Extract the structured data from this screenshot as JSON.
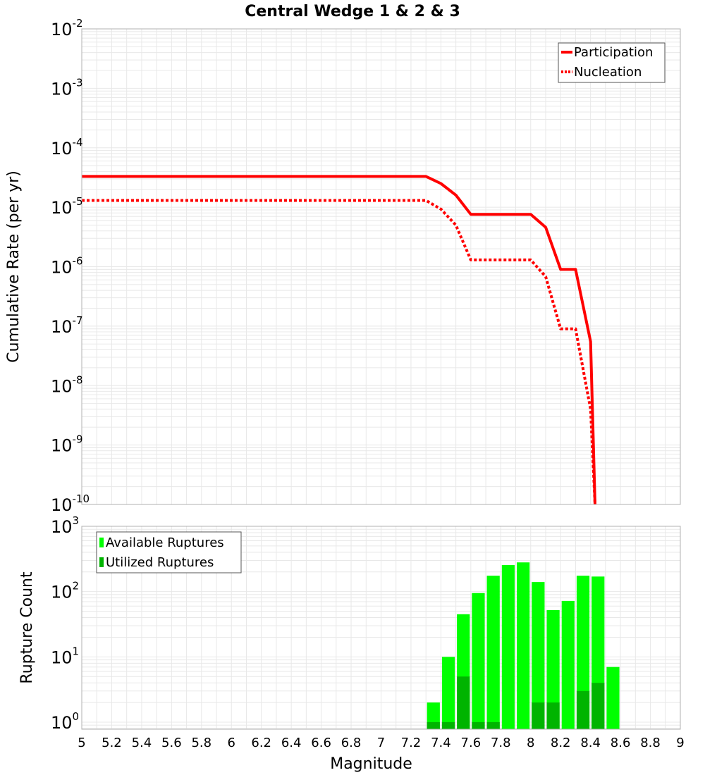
{
  "title": "Central Wedge 1 & 2 & 3",
  "colors": {
    "participation": "#ff0000",
    "nucleation": "#ff0000",
    "available": "#00ff00",
    "utilized": "#00b400",
    "grid": "#e8e8e8",
    "frame": "#b0b0b0"
  },
  "chart_data": [
    {
      "type": "line",
      "ylabel": "Cumulative Rate (per yr)",
      "yscale": "log",
      "ylim": [
        1e-10,
        0.01
      ],
      "xlim": [
        5,
        9
      ],
      "grid": true,
      "legend_position": "top-right",
      "y_ticks": [
        {
          "base": "10",
          "exp": "-10"
        },
        {
          "base": "10",
          "exp": "-9"
        },
        {
          "base": "10",
          "exp": "-8"
        },
        {
          "base": "10",
          "exp": "-7"
        },
        {
          "base": "10",
          "exp": "-6"
        },
        {
          "base": "10",
          "exp": "-5"
        },
        {
          "base": "10",
          "exp": "-4"
        },
        {
          "base": "10",
          "exp": "-3"
        },
        {
          "base": "10",
          "exp": "-2"
        }
      ],
      "series": [
        {
          "name": "Participation",
          "style": "solid",
          "x": [
            5.0,
            7.3,
            7.4,
            7.5,
            7.6,
            7.7,
            7.8,
            7.9,
            8.0,
            8.1,
            8.2,
            8.3,
            8.4,
            8.43
          ],
          "y": [
            3.3e-05,
            3.3e-05,
            2.5e-05,
            1.6e-05,
            7.6e-06,
            7.6e-06,
            7.6e-06,
            7.6e-06,
            7.6e-06,
            4.6e-06,
            9e-07,
            9e-07,
            5.5e-08,
            1e-10
          ]
        },
        {
          "name": "Nucleation",
          "style": "dotted",
          "x": [
            5.0,
            7.3,
            7.4,
            7.5,
            7.6,
            7.7,
            7.8,
            7.9,
            8.0,
            8.1,
            8.2,
            8.3,
            8.4,
            8.43
          ],
          "y": [
            1.3e-05,
            1.3e-05,
            9.3e-06,
            5e-06,
            1.3e-06,
            1.3e-06,
            1.3e-06,
            1.3e-06,
            1.3e-06,
            6.8e-07,
            9e-08,
            9e-08,
            4e-09,
            1e-10
          ]
        }
      ]
    },
    {
      "type": "bar",
      "xlabel": "Magnitude",
      "ylabel": "Rupture Count",
      "yscale": "log",
      "ylim": [
        0.78,
        1000
      ],
      "xlim": [
        5,
        9
      ],
      "grid": true,
      "legend_position": "top-left",
      "x_ticks": [
        "5",
        "5.2",
        "5.4",
        "5.6",
        "5.8",
        "6",
        "6.2",
        "6.4",
        "6.6",
        "6.8",
        "7",
        "7.2",
        "7.4",
        "7.6",
        "7.8",
        "8",
        "8.2",
        "8.4",
        "8.6",
        "8.8",
        "9"
      ],
      "y_ticks": [
        {
          "value": 1,
          "base": "10",
          "exp": "0"
        },
        {
          "value": 10,
          "base": "10",
          "exp": "1"
        },
        {
          "value": 100,
          "base": "10",
          "exp": "2"
        },
        {
          "value": 1000,
          "base": "10",
          "exp": "3"
        }
      ],
      "bin_width": 0.1,
      "categories": [
        7.35,
        7.45,
        7.55,
        7.65,
        7.75,
        7.85,
        7.95,
        8.05,
        8.15,
        8.25,
        8.35,
        8.45,
        8.55
      ],
      "series": [
        {
          "name": "Available Ruptures",
          "values": [
            2,
            10,
            45,
            95,
            175,
            255,
            280,
            140,
            52,
            72,
            175,
            170,
            7
          ]
        },
        {
          "name": "Utilized Ruptures",
          "values": [
            1,
            1,
            5,
            1,
            1,
            0,
            0,
            2,
            2,
            0,
            3,
            4,
            0
          ]
        }
      ]
    }
  ]
}
